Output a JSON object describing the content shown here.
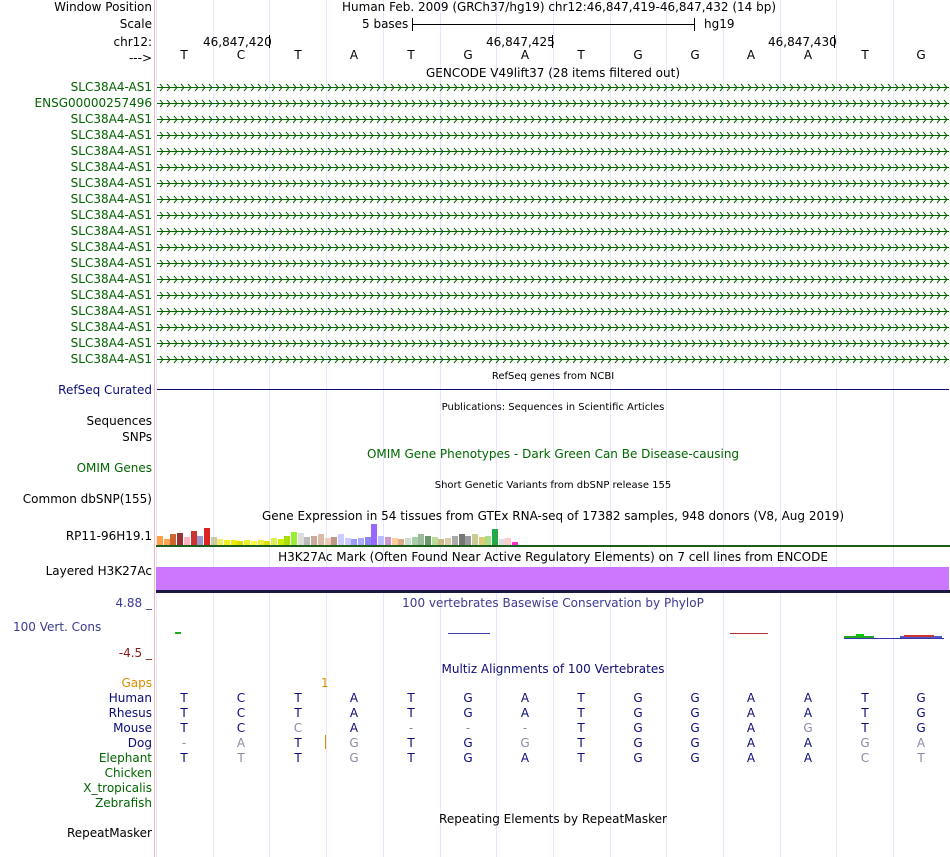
{
  "header": {
    "window_label": "Window Position",
    "window_value": "Human Feb. 2009 (GRCh37/hg19)   chr12:46,847,419-46,847,432 (14 bp)",
    "scale_label": "Scale",
    "scale_bases": "5 bases",
    "scale_db": "hg19",
    "chrom_label": "chr12:",
    "strand_label": "--->",
    "positions": [
      "46,847,420",
      "46,847,425",
      "46,847,430"
    ]
  },
  "sequence": [
    "T",
    "C",
    "T",
    "A",
    "T",
    "G",
    "A",
    "T",
    "G",
    "G",
    "A",
    "A",
    "T",
    "G"
  ],
  "gencode": {
    "title": "GENCODE V49lift37 (28 items filtered out)",
    "items": [
      "SLC38A4-AS1",
      "ENSG00000257496",
      "SLC38A4-AS1",
      "SLC38A4-AS1",
      "SLC38A4-AS1",
      "SLC38A4-AS1",
      "SLC38A4-AS1",
      "SLC38A4-AS1",
      "SLC38A4-AS1",
      "SLC38A4-AS1",
      "SLC38A4-AS1",
      "SLC38A4-AS1",
      "SLC38A4-AS1",
      "SLC38A4-AS1",
      "SLC38A4-AS1",
      "SLC38A4-AS1",
      "SLC38A4-AS1",
      "SLC38A4-AS1"
    ]
  },
  "refseq": {
    "title": "RefSeq genes from NCBI",
    "label": "RefSeq Curated"
  },
  "publications": {
    "title": "Publications: Sequences in Scientific Articles",
    "label1": "Sequences",
    "label2": "SNPs"
  },
  "omim": {
    "title": "OMIM Gene Phenotypes - Dark Green Can Be Disease-causing",
    "label": "OMIM Genes"
  },
  "dbsnp": {
    "title": "Short Genetic Variants from dbSNP release 155",
    "label": "Common dbSNP(155)"
  },
  "gtex": {
    "title": "Gene Expression in 54 tissues from GTEx RNA-seq of 17382 samples, 948 donors (V8, Aug 2019)",
    "label": "RP11-96H19.1",
    "bars": [
      {
        "v": 0.45,
        "c": "#ff9f3f"
      },
      {
        "v": 0.3,
        "c": "#ffa552"
      },
      {
        "v": 0.5,
        "c": "#cc6633"
      },
      {
        "v": 0.55,
        "c": "#993333"
      },
      {
        "v": 0.4,
        "c": "#ffb6c1"
      },
      {
        "v": 0.65,
        "c": "#cc3333"
      },
      {
        "v": 0.45,
        "c": "#9999cc"
      },
      {
        "v": 0.8,
        "c": "#dd2222"
      },
      {
        "v": 0.4,
        "c": "#ccccaa"
      },
      {
        "v": 0.3,
        "c": "#eeee66"
      },
      {
        "v": 0.25,
        "c": "#eeee22"
      },
      {
        "v": 0.25,
        "c": "#eeee00"
      },
      {
        "v": 0.2,
        "c": "#dddd00"
      },
      {
        "v": 0.25,
        "c": "#eeee33"
      },
      {
        "v": 0.2,
        "c": "#ffff33"
      },
      {
        "v": 0.25,
        "c": "#eeee44"
      },
      {
        "v": 0.2,
        "c": "#dddd11"
      },
      {
        "v": 0.35,
        "c": "#ddee55"
      },
      {
        "v": 0.3,
        "c": "#ccee00"
      },
      {
        "v": 0.45,
        "c": "#aadd00"
      },
      {
        "v": 0.6,
        "c": "#99ee33"
      },
      {
        "v": 0.55,
        "c": "#dddddd"
      },
      {
        "v": 0.4,
        "c": "#bbbbbb"
      },
      {
        "v": 0.45,
        "c": "#ccaa99"
      },
      {
        "v": 0.5,
        "c": "#ddbbaa"
      },
      {
        "v": 0.35,
        "c": "#eeccbb"
      },
      {
        "v": 0.4,
        "c": "#bb9988"
      },
      {
        "v": 0.5,
        "c": "#ccccff"
      },
      {
        "v": 0.35,
        "c": "#ccccff"
      },
      {
        "v": 0.3,
        "c": "#9999ff"
      },
      {
        "v": 0.35,
        "c": "#aaaaff"
      },
      {
        "v": 0.4,
        "c": "#8888ee"
      },
      {
        "v": 1.0,
        "c": "#9966ff"
      },
      {
        "v": 0.45,
        "c": "#bbbbff"
      },
      {
        "v": 0.4,
        "c": "#cc99cc"
      },
      {
        "v": 0.35,
        "c": "#ffcc99"
      },
      {
        "v": 0.3,
        "c": "#ddaa88"
      },
      {
        "v": 0.35,
        "c": "#ccddcc"
      },
      {
        "v": 0.4,
        "c": "#aaccaa"
      },
      {
        "v": 0.5,
        "c": "#99bb99"
      },
      {
        "v": 0.45,
        "c": "#669966"
      },
      {
        "v": 0.4,
        "c": "#bbdd99"
      },
      {
        "v": 0.3,
        "c": "#ccbb88"
      },
      {
        "v": 0.35,
        "c": "#ddccaa"
      },
      {
        "v": 0.45,
        "c": "#aaaaaa"
      },
      {
        "v": 0.5,
        "c": "#777777"
      },
      {
        "v": 0.45,
        "c": "#999999"
      },
      {
        "v": 0.5,
        "c": "#cccc99"
      },
      {
        "v": 0.4,
        "c": "#ddcc77"
      },
      {
        "v": 0.45,
        "c": "#aadd88"
      },
      {
        "v": 0.75,
        "c": "#22aa44"
      },
      {
        "v": 0.3,
        "c": "#dddddd"
      },
      {
        "v": 0.35,
        "c": "#ffcccc"
      },
      {
        "v": 0.15,
        "c": "#ff33cc"
      }
    ]
  },
  "h3k27ac": {
    "title": "H3K27Ac Mark (Often Found Near Active Regulatory Elements) on 7 cell lines from ENCODE",
    "label": "Layered H3K27Ac",
    "color": "#cc77ff"
  },
  "phylop": {
    "title": "100 vertebrates Basewise Conservation by PhyloP",
    "label": "100 Vert. Cons",
    "max": "4.88 _",
    "min": "-4.5 _"
  },
  "multiz": {
    "title": "Multiz Alignments of 100 Vertebrates",
    "gaps_label": "Gaps",
    "gaps_value": "1",
    "species": [
      {
        "name": "Human",
        "bases": [
          "T",
          "C",
          "T",
          "A",
          "T",
          "G",
          "A",
          "T",
          "G",
          "G",
          "A",
          "A",
          "T",
          "G"
        ],
        "faded": []
      },
      {
        "name": "Rhesus",
        "bases": [
          "T",
          "C",
          "T",
          "A",
          "T",
          "G",
          "A",
          "T",
          "G",
          "G",
          "A",
          "A",
          "T",
          "G"
        ],
        "faded": []
      },
      {
        "name": "Mouse",
        "bases": [
          "T",
          "C",
          "C",
          "A",
          "-",
          "-",
          "-",
          "T",
          "G",
          "G",
          "A",
          "G",
          "T",
          "G"
        ],
        "faded": [
          2,
          4,
          5,
          6,
          11
        ]
      },
      {
        "name": "Dog",
        "bases": [
          "-",
          "A",
          "T",
          "G",
          "T",
          "G",
          "G",
          "T",
          "G",
          "G",
          "A",
          "A",
          "G",
          "A"
        ],
        "faded": [
          0,
          1,
          3,
          6,
          12,
          13
        ]
      },
      {
        "name": "Elephant",
        "bases": [
          "T",
          "T",
          "T",
          "G",
          "T",
          "G",
          "A",
          "T",
          "G",
          "G",
          "A",
          "A",
          "C",
          "T"
        ],
        "faded": [
          1,
          3,
          12,
          13
        ]
      },
      {
        "name": "Chicken",
        "bases": [],
        "faded": []
      },
      {
        "name": "X_tropicalis",
        "bases": [],
        "faded": []
      },
      {
        "name": "Zebrafish",
        "bases": [],
        "faded": []
      }
    ]
  },
  "repeatmasker": {
    "title": "Repeating Elements by RepeatMasker",
    "label": "RepeatMasker"
  },
  "colors": {
    "gencode": "#006400",
    "refseq": "#0c0c78",
    "base": "#0c0c78",
    "faded": "#8a8aa8",
    "gaps": "#d88c00",
    "omim": "#006600",
    "phylop": "#3a3a90",
    "phylop_min": "#8b1a1a"
  }
}
